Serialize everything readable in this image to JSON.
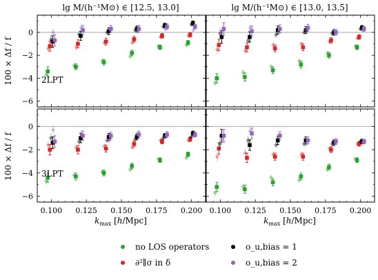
{
  "figure": {
    "column_titles": [
      "lg M/(h⁻¹M⊙) ∈ [12.5, 13.0]",
      "lg M/(h⁻¹M⊙) ∈ [13.0, 13.5]"
    ],
    "row_tags": [
      "2LPT",
      "3LPT"
    ],
    "ylabel": "100 × Δf / f",
    "xlabel": "k_max [h/Mpc]"
  },
  "legend": [
    {
      "key": "green",
      "label": "no LOS operators",
      "color": "#2ca02c"
    },
    {
      "key": "red",
      "label": "∂²∥σ in δ",
      "color": "#d62728"
    },
    {
      "key": "black",
      "label": "o_u,bias = 1",
      "color": "#000000"
    },
    {
      "key": "purple",
      "label": "o_u,bias = 2",
      "color": "#9467bd"
    }
  ],
  "chart_data": {
    "type": "scatter",
    "layout": "2x2 grid",
    "xlabel": "k_max [h/Mpc]",
    "ylabel": "100 × Δf / f",
    "xlim": [
      0.09,
      0.21
    ],
    "ylim": [
      -6.5,
      1.5
    ],
    "x_ticks": [
      0.1,
      0.125,
      0.15,
      0.175,
      0.2
    ],
    "x_tick_labels": [
      "0.100",
      "0.125",
      "0.150",
      "0.175",
      "0.200"
    ],
    "y_ticks": [
      -6,
      -4,
      -2,
      0
    ],
    "reference_line": 0,
    "kmax": [
      0.1,
      0.12,
      0.14,
      0.16,
      0.18,
      0.2
    ],
    "panels": [
      {
        "column": "lg M ∈ [12.5, 13.0]",
        "row": "2LPT",
        "series": [
          {
            "key": "green",
            "y": [
              -3.4,
              -3.0,
              -2.6,
              -1.8,
              -1.3,
              -0.9
            ],
            "err": [
              0.4,
              0.25,
              0.25,
              0.25,
              0.2,
              0.2
            ],
            "faint_y": [
              -3.7,
              -2.9,
              -2.5,
              -2.1,
              -1.2,
              -1.1
            ]
          },
          {
            "key": "red",
            "y": [
              -1.2,
              -1.0,
              -0.8,
              -0.6,
              -0.3,
              -0.2
            ],
            "err": [
              0.45,
              0.35,
              0.3,
              0.25,
              0.2,
              0.2
            ],
            "faint_y": [
              -1.4,
              -1.3,
              -0.9,
              -0.9,
              -0.4,
              -0.3
            ]
          },
          {
            "key": "black",
            "y": [
              -0.8,
              -0.3,
              0.1,
              0.3,
              0.6,
              0.8
            ],
            "err": [
              0.5,
              0.4,
              0.3,
              0.25,
              0.2,
              0.2
            ],
            "faint_y": [
              -0.6,
              -0.2,
              0.0,
              0.2,
              0.5,
              0.7
            ]
          },
          {
            "key": "purple",
            "y": [
              -0.7,
              0.2,
              0.3,
              0.3,
              0.5,
              0.5
            ],
            "err": [
              0.5,
              0.4,
              0.3,
              0.3,
              0.25,
              0.2
            ],
            "faint_y": [
              0.0,
              0.4,
              0.3,
              0.1,
              0.3,
              0.2
            ]
          }
        ]
      },
      {
        "column": "lg M ∈ [13.0, 13.5]",
        "row": "2LPT",
        "series": [
          {
            "key": "green",
            "y": [
              -4.0,
              -3.9,
              -3.3,
              -2.8,
              -2.0,
              -1.3
            ],
            "err": [
              0.4,
              0.35,
              0.3,
              0.3,
              0.25,
              0.2
            ],
            "faint_y": [
              -4.4,
              -3.5,
              -3.0,
              -2.5,
              -1.8,
              -1.2
            ]
          },
          {
            "key": "red",
            "y": [
              -1.1,
              -1.3,
              -1.4,
              -1.3,
              -0.7,
              -0.4
            ],
            "err": [
              0.5,
              0.4,
              0.3,
              0.3,
              0.25,
              0.2
            ],
            "faint_y": [
              -1.5,
              -1.6,
              -1.1,
              -1.0,
              -0.8,
              -0.5
            ]
          },
          {
            "key": "black",
            "y": [
              -0.4,
              -0.4,
              0.2,
              0.2,
              0.0,
              0.4
            ],
            "err": [
              0.55,
              0.45,
              0.35,
              0.3,
              0.25,
              0.2
            ],
            "faint_y": [
              -0.1,
              -0.7,
              -0.2,
              0.0,
              -0.1,
              0.3
            ]
          },
          {
            "key": "purple",
            "y": [
              0.3,
              0.1,
              0.3,
              0.4,
              0.0,
              0.3
            ],
            "err": [
              0.55,
              0.45,
              0.35,
              0.3,
              0.25,
              0.2
            ],
            "faint_y": [
              0.1,
              0.4,
              0.0,
              0.2,
              0.1,
              0.2
            ]
          }
        ]
      },
      {
        "column": "lg M ∈ [12.5, 13.0]",
        "row": "3LPT",
        "series": [
          {
            "key": "green",
            "y": [
              -4.4,
              -4.3,
              -4.0,
              -3.4,
              -2.9,
              -2.4
            ],
            "err": [
              0.4,
              0.3,
              0.25,
              0.25,
              0.2,
              0.2
            ],
            "faint_y": [
              -4.7,
              -4.2,
              -3.9,
              -3.7,
              -2.8,
              -2.7
            ]
          },
          {
            "key": "red",
            "y": [
              -2.0,
              -2.0,
              -1.9,
              -1.5,
              -1.3,
              -1.1
            ],
            "err": [
              0.45,
              0.35,
              0.3,
              0.25,
              0.2,
              0.2
            ],
            "faint_y": [
              -1.6,
              -1.8,
              -1.7,
              -1.8,
              -1.2,
              -1.2
            ]
          },
          {
            "key": "black",
            "y": [
              -1.4,
              -1.0,
              -0.9,
              -0.9,
              -0.8,
              -0.6
            ],
            "err": [
              0.5,
              0.4,
              0.3,
              0.25,
              0.2,
              0.2
            ],
            "faint_y": [
              -1.0,
              -1.3,
              -1.2,
              -1.1,
              -1.0,
              -0.9
            ]
          },
          {
            "key": "purple",
            "y": [
              -1.3,
              -0.8,
              -0.8,
              -0.7,
              -0.7,
              -0.7
            ],
            "err": [
              0.5,
              0.4,
              0.3,
              0.3,
              0.25,
              0.2
            ],
            "faint_y": [
              -0.3,
              -0.6,
              -1.2,
              -0.6,
              -0.9,
              -0.8
            ]
          }
        ]
      },
      {
        "column": "lg M ∈ [13.0, 13.5]",
        "row": "3LPT",
        "series": [
          {
            "key": "green",
            "y": [
              -5.2,
              -5.4,
              -4.8,
              -4.3,
              -3.5,
              -2.9
            ],
            "err": [
              0.4,
              0.35,
              0.3,
              0.3,
              0.25,
              0.2
            ],
            "faint_y": [
              -5.7,
              -5.2,
              -4.4,
              -4.6,
              -3.7,
              -2.8
            ]
          },
          {
            "key": "red",
            "y": [
              -1.9,
              -2.7,
              -2.6,
              -2.6,
              -2.0,
              -1.5
            ],
            "err": [
              0.5,
              0.4,
              0.3,
              0.3,
              0.25,
              0.2
            ],
            "faint_y": [
              -2.6,
              -2.3,
              -2.4,
              -2.4,
              -1.9,
              -1.5
            ]
          },
          {
            "key": "black",
            "y": [
              -0.8,
              -1.6,
              -1.2,
              -1.2,
              -1.4,
              -1.3
            ],
            "err": [
              0.55,
              0.45,
              0.35,
              0.3,
              0.25,
              0.2
            ],
            "faint_y": [
              -1.5,
              -1.2,
              -1.6,
              -1.5,
              -1.5,
              -1.3
            ]
          },
          {
            "key": "purple",
            "y": [
              -0.8,
              -0.6,
              -0.8,
              -1.2,
              -1.3,
              -1.3
            ],
            "err": [
              0.55,
              0.45,
              0.35,
              0.3,
              0.25,
              0.2
            ],
            "faint_y": [
              -1.1,
              -0.4,
              -0.8,
              -1.5,
              -1.5,
              -1.4
            ]
          }
        ]
      }
    ]
  }
}
